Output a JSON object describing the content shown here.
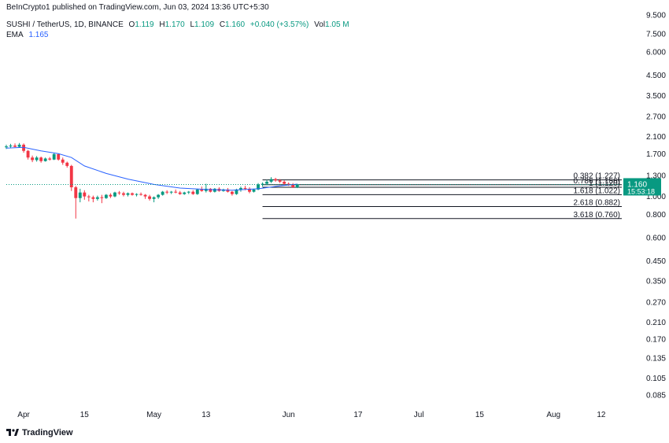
{
  "header": {
    "published": "BeInCrypto1 published on TradingView.com, Jun 03, 2024 13:36 UTC+5:30"
  },
  "legend": {
    "symbol": "SUSHI / TetherUS, 1D, BINANCE",
    "open_label": "O",
    "open": "1.119",
    "high_label": "H",
    "high": "1.170",
    "low_label": "L",
    "low": "1.109",
    "close_label": "C",
    "close": "1.160",
    "change": "+0.040 (+3.57%)",
    "vol_label": "Vol",
    "vol": "1.05 M",
    "ema_label": "EMA",
    "ema_value": "1.165"
  },
  "price_badge": {
    "price": "1.160",
    "countdown": "15:53:18"
  },
  "footer": {
    "brand": "TradingView"
  },
  "colors": {
    "up": "#089981",
    "down": "#f23645",
    "ema": "#2962ff",
    "badge": "#089981",
    "fib": "#131722"
  },
  "chart_data": {
    "type": "candlestick",
    "yscale": "log",
    "ylim": [
      0.078,
      9.5
    ],
    "y_ticks": [
      "9.500",
      "7.500",
      "6.000",
      "4.500",
      "3.500",
      "2.700",
      "2.100",
      "1.700",
      "1.300",
      "1.000",
      "0.800",
      "0.600",
      "0.450",
      "0.350",
      "0.270",
      "0.210",
      "0.170",
      "0.135",
      "0.105",
      "0.085"
    ],
    "x_ticks": [
      "Apr",
      "15",
      "May",
      "13",
      "Jun",
      "17",
      "Jul",
      "15",
      "Aug",
      "12"
    ],
    "x_tick_dates": [
      "2024-04-01",
      "2024-04-15",
      "2024-05-01",
      "2024-05-13",
      "2024-06-01",
      "2024-06-17",
      "2024-07-01",
      "2024-07-15",
      "2024-08-01",
      "2024-08-12"
    ],
    "xlim": [
      "2024-03-28",
      "2024-08-16"
    ],
    "candles": [
      {
        "date": "2024-03-28",
        "o": 1.84,
        "h": 1.9,
        "l": 1.8,
        "c": 1.86
      },
      {
        "date": "2024-03-29",
        "o": 1.86,
        "h": 1.92,
        "l": 1.82,
        "c": 1.88
      },
      {
        "date": "2024-03-30",
        "o": 1.88,
        "h": 1.93,
        "l": 1.84,
        "c": 1.85
      },
      {
        "date": "2024-03-31",
        "o": 1.85,
        "h": 1.94,
        "l": 1.83,
        "c": 1.9
      },
      {
        "date": "2024-04-01",
        "o": 1.9,
        "h": 1.93,
        "l": 1.72,
        "c": 1.76
      },
      {
        "date": "2024-04-02",
        "o": 1.76,
        "h": 1.78,
        "l": 1.58,
        "c": 1.62
      },
      {
        "date": "2024-04-03",
        "o": 1.62,
        "h": 1.66,
        "l": 1.53,
        "c": 1.57
      },
      {
        "date": "2024-04-04",
        "o": 1.57,
        "h": 1.65,
        "l": 1.54,
        "c": 1.62
      },
      {
        "date": "2024-04-05",
        "o": 1.62,
        "h": 1.64,
        "l": 1.52,
        "c": 1.55
      },
      {
        "date": "2024-04-06",
        "o": 1.55,
        "h": 1.62,
        "l": 1.54,
        "c": 1.6
      },
      {
        "date": "2024-04-07",
        "o": 1.6,
        "h": 1.63,
        "l": 1.56,
        "c": 1.58
      },
      {
        "date": "2024-04-08",
        "o": 1.58,
        "h": 1.72,
        "l": 1.57,
        "c": 1.69
      },
      {
        "date": "2024-04-09",
        "o": 1.69,
        "h": 1.7,
        "l": 1.56,
        "c": 1.58
      },
      {
        "date": "2024-04-10",
        "o": 1.58,
        "h": 1.62,
        "l": 1.48,
        "c": 1.52
      },
      {
        "date": "2024-04-11",
        "o": 1.52,
        "h": 1.54,
        "l": 1.43,
        "c": 1.46
      },
      {
        "date": "2024-04-12",
        "o": 1.46,
        "h": 1.48,
        "l": 1.07,
        "c": 1.12
      },
      {
        "date": "2024-04-13",
        "o": 1.12,
        "h": 1.14,
        "l": 0.76,
        "c": 0.98
      },
      {
        "date": "2024-04-14",
        "o": 0.98,
        "h": 1.1,
        "l": 0.93,
        "c": 1.05
      },
      {
        "date": "2024-04-15",
        "o": 1.05,
        "h": 1.08,
        "l": 0.96,
        "c": 1.0
      },
      {
        "date": "2024-04-16",
        "o": 1.0,
        "h": 1.02,
        "l": 0.94,
        "c": 0.99
      },
      {
        "date": "2024-04-17",
        "o": 0.99,
        "h": 1.01,
        "l": 0.93,
        "c": 0.97
      },
      {
        "date": "2024-04-18",
        "o": 0.97,
        "h": 1.01,
        "l": 0.95,
        "c": 0.99
      },
      {
        "date": "2024-04-19",
        "o": 0.99,
        "h": 1.02,
        "l": 0.92,
        "c": 0.98
      },
      {
        "date": "2024-04-20",
        "o": 0.98,
        "h": 1.03,
        "l": 0.97,
        "c": 1.02
      },
      {
        "date": "2024-04-21",
        "o": 1.02,
        "h": 1.04,
        "l": 0.98,
        "c": 1.0
      },
      {
        "date": "2024-04-22",
        "o": 1.0,
        "h": 1.06,
        "l": 0.99,
        "c": 1.05
      },
      {
        "date": "2024-04-23",
        "o": 1.05,
        "h": 1.07,
        "l": 1.02,
        "c": 1.04
      },
      {
        "date": "2024-04-24",
        "o": 1.04,
        "h": 1.06,
        "l": 1.0,
        "c": 1.02
      },
      {
        "date": "2024-04-25",
        "o": 1.02,
        "h": 1.05,
        "l": 1.0,
        "c": 1.04
      },
      {
        "date": "2024-04-26",
        "o": 1.04,
        "h": 1.05,
        "l": 1.01,
        "c": 1.02
      },
      {
        "date": "2024-04-27",
        "o": 1.02,
        "h": 1.04,
        "l": 1.0,
        "c": 1.03
      },
      {
        "date": "2024-04-28",
        "o": 1.03,
        "h": 1.05,
        "l": 1.01,
        "c": 1.02
      },
      {
        "date": "2024-04-29",
        "o": 1.02,
        "h": 1.03,
        "l": 0.97,
        "c": 1.0
      },
      {
        "date": "2024-04-30",
        "o": 1.0,
        "h": 1.02,
        "l": 0.95,
        "c": 0.97
      },
      {
        "date": "2024-05-01",
        "o": 0.97,
        "h": 1.0,
        "l": 0.93,
        "c": 0.99
      },
      {
        "date": "2024-05-02",
        "o": 0.99,
        "h": 1.03,
        "l": 0.97,
        "c": 1.02
      },
      {
        "date": "2024-05-03",
        "o": 1.02,
        "h": 1.07,
        "l": 1.01,
        "c": 1.06
      },
      {
        "date": "2024-05-04",
        "o": 1.06,
        "h": 1.08,
        "l": 1.03,
        "c": 1.05
      },
      {
        "date": "2024-05-05",
        "o": 1.05,
        "h": 1.07,
        "l": 1.03,
        "c": 1.06
      },
      {
        "date": "2024-05-06",
        "o": 1.06,
        "h": 1.09,
        "l": 1.04,
        "c": 1.05
      },
      {
        "date": "2024-05-07",
        "o": 1.05,
        "h": 1.07,
        "l": 1.02,
        "c": 1.03
      },
      {
        "date": "2024-05-08",
        "o": 1.03,
        "h": 1.06,
        "l": 1.02,
        "c": 1.05
      },
      {
        "date": "2024-05-09",
        "o": 1.05,
        "h": 1.07,
        "l": 1.03,
        "c": 1.06
      },
      {
        "date": "2024-05-10",
        "o": 1.06,
        "h": 1.08,
        "l": 1.02,
        "c": 1.03
      },
      {
        "date": "2024-05-11",
        "o": 1.03,
        "h": 1.1,
        "l": 1.02,
        "c": 1.09
      },
      {
        "date": "2024-05-12",
        "o": 1.09,
        "h": 1.13,
        "l": 1.06,
        "c": 1.07
      },
      {
        "date": "2024-05-13",
        "o": 1.07,
        "h": 1.17,
        "l": 1.05,
        "c": 1.1
      },
      {
        "date": "2024-05-14",
        "o": 1.1,
        "h": 1.11,
        "l": 1.05,
        "c": 1.06
      },
      {
        "date": "2024-05-15",
        "o": 1.06,
        "h": 1.11,
        "l": 1.05,
        "c": 1.1
      },
      {
        "date": "2024-05-16",
        "o": 1.1,
        "h": 1.12,
        "l": 1.06,
        "c": 1.07
      },
      {
        "date": "2024-05-17",
        "o": 1.07,
        "h": 1.1,
        "l": 1.06,
        "c": 1.09
      },
      {
        "date": "2024-05-18",
        "o": 1.09,
        "h": 1.11,
        "l": 1.05,
        "c": 1.06
      },
      {
        "date": "2024-05-19",
        "o": 1.06,
        "h": 1.07,
        "l": 1.01,
        "c": 1.03
      },
      {
        "date": "2024-05-20",
        "o": 1.03,
        "h": 1.1,
        "l": 1.02,
        "c": 1.09
      },
      {
        "date": "2024-05-21",
        "o": 1.09,
        "h": 1.13,
        "l": 1.06,
        "c": 1.11
      },
      {
        "date": "2024-05-22",
        "o": 1.11,
        "h": 1.14,
        "l": 1.08,
        "c": 1.1
      },
      {
        "date": "2024-05-23",
        "o": 1.1,
        "h": 1.12,
        "l": 1.04,
        "c": 1.06
      },
      {
        "date": "2024-05-24",
        "o": 1.06,
        "h": 1.1,
        "l": 1.05,
        "c": 1.09
      },
      {
        "date": "2024-05-25",
        "o": 1.09,
        "h": 1.18,
        "l": 1.08,
        "c": 1.16
      },
      {
        "date": "2024-05-26",
        "o": 1.16,
        "h": 1.19,
        "l": 1.13,
        "c": 1.17
      },
      {
        "date": "2024-05-27",
        "o": 1.17,
        "h": 1.23,
        "l": 1.15,
        "c": 1.2
      },
      {
        "date": "2024-05-28",
        "o": 1.2,
        "h": 1.27,
        "l": 1.18,
        "c": 1.24
      },
      {
        "date": "2024-05-29",
        "o": 1.24,
        "h": 1.26,
        "l": 1.2,
        "c": 1.22
      },
      {
        "date": "2024-05-30",
        "o": 1.22,
        "h": 1.24,
        "l": 1.18,
        "c": 1.2
      },
      {
        "date": "2024-05-31",
        "o": 1.2,
        "h": 1.22,
        "l": 1.15,
        "c": 1.17
      },
      {
        "date": "2024-06-01",
        "o": 1.17,
        "h": 1.19,
        "l": 1.14,
        "c": 1.16
      },
      {
        "date": "2024-06-02",
        "o": 1.16,
        "h": 1.18,
        "l": 1.11,
        "c": 1.12
      },
      {
        "date": "2024-06-03",
        "o": 1.119,
        "h": 1.17,
        "l": 1.109,
        "c": 1.16
      }
    ],
    "ema": [
      {
        "date": "2024-03-28",
        "v": 1.82
      },
      {
        "date": "2024-04-01",
        "v": 1.84
      },
      {
        "date": "2024-04-05",
        "v": 1.76
      },
      {
        "date": "2024-04-09",
        "v": 1.7
      },
      {
        "date": "2024-04-12",
        "v": 1.62
      },
      {
        "date": "2024-04-15",
        "v": 1.46
      },
      {
        "date": "2024-04-20",
        "v": 1.33
      },
      {
        "date": "2024-04-25",
        "v": 1.24
      },
      {
        "date": "2024-05-01",
        "v": 1.16
      },
      {
        "date": "2024-05-07",
        "v": 1.11
      },
      {
        "date": "2024-05-13",
        "v": 1.09
      },
      {
        "date": "2024-05-19",
        "v": 1.08
      },
      {
        "date": "2024-05-25",
        "v": 1.1
      },
      {
        "date": "2024-05-30",
        "v": 1.14
      },
      {
        "date": "2024-06-03",
        "v": 1.165
      }
    ],
    "fib_levels": [
      {
        "label": "0.382 (1.227)",
        "value": 1.227
      },
      {
        "label": "0.786 (1.156)",
        "value": 1.156
      },
      {
        "label": "1 (1.120)",
        "value": 1.12
      },
      {
        "label": "1.618 (1.022)",
        "value": 1.022
      },
      {
        "label": "2.618 (0.882)",
        "value": 0.882
      },
      {
        "label": "3.618 (0.760)",
        "value": 0.76
      }
    ],
    "fib_start": "2024-05-26"
  }
}
